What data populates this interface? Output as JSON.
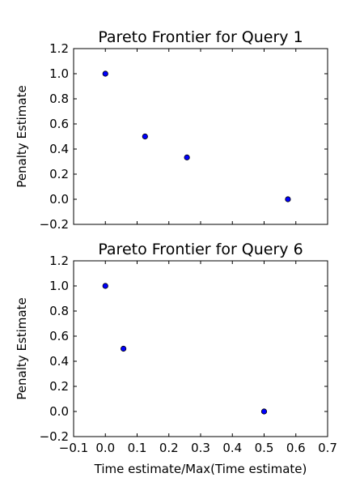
{
  "chart_data": [
    {
      "type": "scatter",
      "title": "Pareto Frontier for Query 1",
      "ylabel": "Penalty Estimate",
      "xlabel": "",
      "xlim": [
        -0.1,
        0.7
      ],
      "ylim": [
        -0.2,
        1.2
      ],
      "xticks": [
        -0.1,
        0.0,
        0.1,
        0.2,
        0.3,
        0.4,
        0.5,
        0.6,
        0.7
      ],
      "yticks": [
        -0.2,
        0.0,
        0.2,
        0.4,
        0.6,
        0.8,
        1.0,
        1.2
      ],
      "show_xtick_labels": false,
      "grid": false,
      "points": [
        {
          "x": 0.0,
          "y": 1.0
        },
        {
          "x": 0.125,
          "y": 0.5
        },
        {
          "x": 0.257,
          "y": 0.333
        },
        {
          "x": 0.575,
          "y": 0.0
        }
      ]
    },
    {
      "type": "scatter",
      "title": "Pareto Frontier for Query 6",
      "ylabel": "Penalty Estimate",
      "xlabel": "Time estimate/Max(Time estimate)",
      "xlim": [
        -0.1,
        0.7
      ],
      "ylim": [
        -0.2,
        1.2
      ],
      "xticks": [
        -0.1,
        0.0,
        0.1,
        0.2,
        0.3,
        0.4,
        0.5,
        0.6,
        0.7
      ],
      "yticks": [
        -0.2,
        0.0,
        0.2,
        0.4,
        0.6,
        0.8,
        1.0,
        1.2
      ],
      "show_xtick_labels": true,
      "grid": false,
      "points": [
        {
          "x": 0.0,
          "y": 1.0
        },
        {
          "x": 0.057,
          "y": 0.5
        },
        {
          "x": 0.5,
          "y": 0.0
        }
      ]
    }
  ],
  "colors": {
    "marker_fill": "#0000ff",
    "marker_edge": "#000000",
    "axes": "#000000"
  }
}
